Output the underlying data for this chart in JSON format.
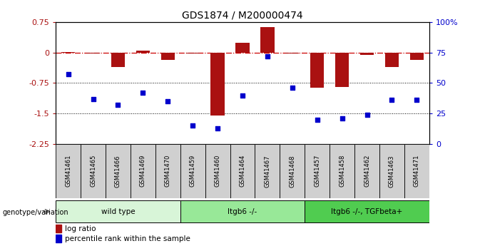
{
  "title": "GDS1874 / M200000474",
  "samples": [
    "GSM41461",
    "GSM41465",
    "GSM41466",
    "GSM41469",
    "GSM41470",
    "GSM41459",
    "GSM41460",
    "GSM41464",
    "GSM41467",
    "GSM41468",
    "GSM41457",
    "GSM41458",
    "GSM41462",
    "GSM41463",
    "GSM41471"
  ],
  "log_ratio": [
    0.02,
    -0.02,
    -0.35,
    0.05,
    -0.18,
    -0.02,
    -1.55,
    0.25,
    0.62,
    -0.02,
    -0.87,
    -0.85,
    -0.05,
    -0.35,
    -0.18
  ],
  "percentile_rank": [
    57,
    37,
    32,
    42,
    35,
    15,
    13,
    40,
    72,
    46,
    20,
    21,
    24,
    36,
    36
  ],
  "groups": [
    {
      "label": "wild type",
      "start": 0,
      "end": 5,
      "color": "#d8f5d8"
    },
    {
      "label": "Itgb6 -/-",
      "start": 5,
      "end": 10,
      "color": "#98e898"
    },
    {
      "label": "Itgb6 -/-, TGFbeta+",
      "start": 10,
      "end": 15,
      "color": "#50cc50"
    }
  ],
  "ylim_left": [
    -2.25,
    0.75
  ],
  "ylim_right": [
    0,
    100
  ],
  "bar_color": "#aa1111",
  "dot_color": "#0000cc",
  "hline_color": "#cc0000",
  "grid_color": "#000000",
  "label_log_ratio": "log ratio",
  "label_percentile": "percentile rank within the sample",
  "genotype_label": "genotype/variation",
  "y_ticks_left": [
    0.75,
    0.0,
    -0.75,
    -1.5,
    -2.25
  ],
  "y_ticks_right": [
    100,
    75,
    50,
    25,
    0
  ],
  "y_tick_labels_right": [
    "100%",
    "75",
    "50",
    "25",
    "0"
  ],
  "sample_box_color": "#d0d0d0",
  "plot_bg": "#ffffff"
}
